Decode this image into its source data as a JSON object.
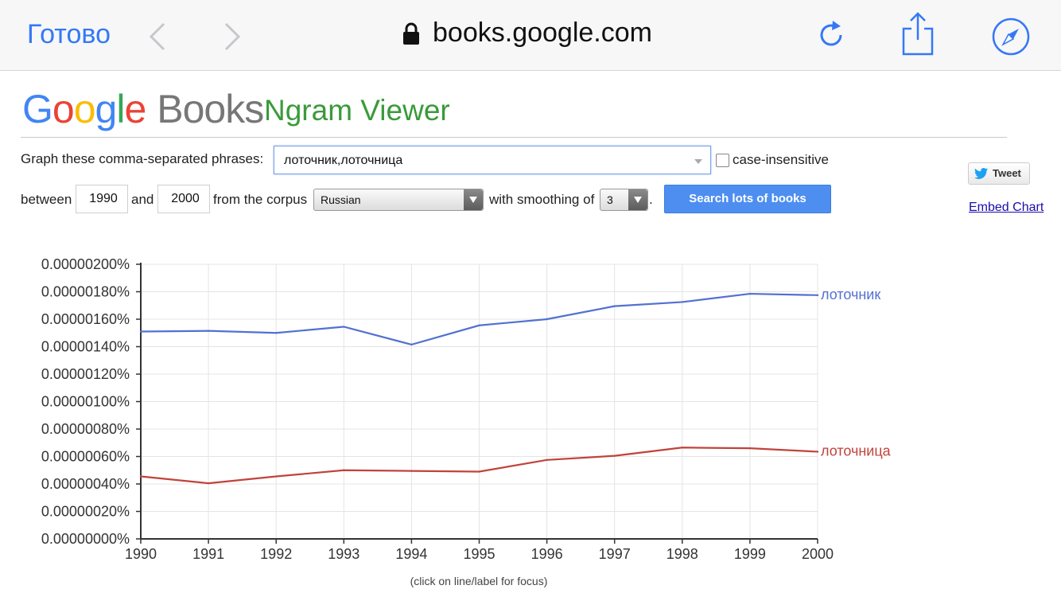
{
  "browser": {
    "done_label": "Готово",
    "url": "books.google.com",
    "icons": [
      "back-chevron-icon",
      "forward-chevron-icon",
      "lock-icon",
      "reload-icon",
      "share-icon",
      "compass-icon"
    ]
  },
  "header": {
    "logo_google": "Google",
    "logo_books": "Books",
    "subtitle": "Ngram Viewer"
  },
  "form": {
    "phrases_label": "Graph these comma-separated phrases:",
    "phrases_value": "лоточник,лоточница",
    "case_insensitive_label": "case-insensitive",
    "between_label": "between",
    "year_start": "1990",
    "and_label": "and",
    "year_end": "2000",
    "corpus_label": "from the corpus",
    "corpus_value": "Russian",
    "smoothing_label": "with smoothing of",
    "smoothing_value": "3",
    "period": ".",
    "search_button": "Search lots of books"
  },
  "side": {
    "tweet_label": "Tweet",
    "embed_label": "Embed Chart"
  },
  "colors": {
    "blue_series": "#5271d0",
    "red_series": "#c0433c",
    "button": "#4d8ef0",
    "google_green": "#3a9a3a"
  },
  "chart_data": {
    "type": "line",
    "x": [
      1990,
      1991,
      1992,
      1993,
      1994,
      1995,
      1996,
      1997,
      1998,
      1999,
      2000
    ],
    "series": [
      {
        "name": "лоточник",
        "color": "#5271d0",
        "values": [
          1.51e-06,
          1.515e-06,
          1.5e-06,
          1.545e-06,
          1.415e-06,
          1.555e-06,
          1.6e-06,
          1.695e-06,
          1.725e-06,
          1.785e-06,
          1.775e-06
        ]
      },
      {
        "name": "лоточница",
        "color": "#c0433c",
        "values": [
          4.55e-07,
          4.05e-07,
          4.55e-07,
          5e-07,
          4.95e-07,
          4.9e-07,
          5.75e-07,
          6.05e-07,
          6.65e-07,
          6.6e-07,
          6.35e-07
        ]
      }
    ],
    "ylim": [
      0,
      2e-06
    ],
    "y_ticks": [
      "0.00000000%",
      "0.00000020%",
      "0.00000040%",
      "0.00000060%",
      "0.00000080%",
      "0.00000100%",
      "0.00000120%",
      "0.00000140%",
      "0.00000160%",
      "0.00000180%",
      "0.00000200%"
    ],
    "x_ticks": [
      "1990",
      "1991",
      "1992",
      "1993",
      "1994",
      "1995",
      "1996",
      "1997",
      "1998",
      "1999",
      "2000"
    ],
    "grid": true,
    "legend": "inline-right",
    "footnote": "(click on line/label for focus)"
  }
}
